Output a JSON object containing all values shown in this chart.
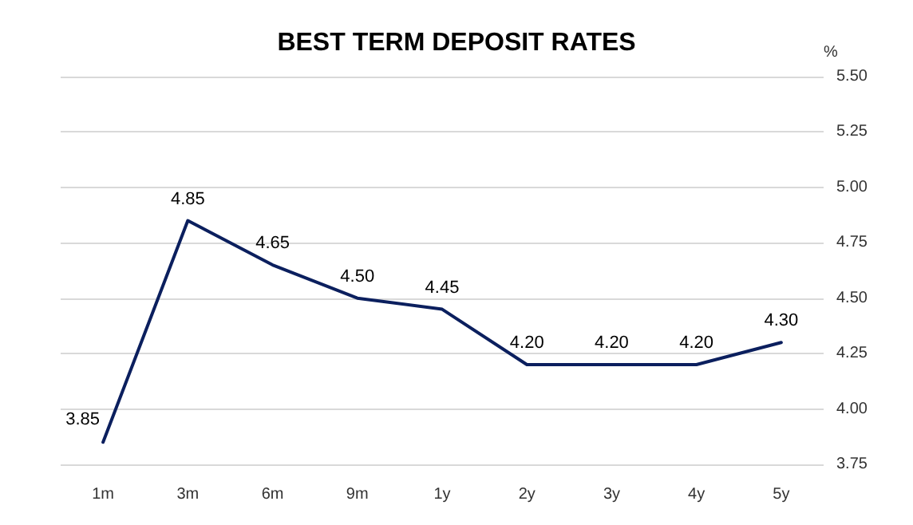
{
  "chart_data": {
    "type": "line",
    "title": "BEST TERM DEPOSIT RATES",
    "ylabel": "%",
    "categories": [
      "1m",
      "3m",
      "6m",
      "9m",
      "1y",
      "2y",
      "3y",
      "4y",
      "5y"
    ],
    "series": [
      {
        "color": "#0b1f5e",
        "values": [
          3.85,
          4.85,
          4.65,
          4.5,
          4.45,
          4.2,
          4.2,
          4.2,
          4.3
        ],
        "value_labels": [
          "3.85",
          "4.85",
          "4.65",
          "4.50",
          "4.45",
          "4.20",
          "4.20",
          "4.20",
          "4.30"
        ]
      }
    ],
    "ylim": [
      3.75,
      5.5
    ],
    "yticks": [
      3.75,
      {
        "value": 4,
        "label": "4.00"
      },
      4.25,
      {
        "value": 4.5,
        "label": "4.50"
      },
      4.75,
      {
        "value": 5,
        "label": "5.00"
      },
      5.25,
      {
        "value": 5.5,
        "label": "5.50"
      }
    ],
    "grid": "y",
    "marker": "none",
    "line_style": "solid"
  }
}
